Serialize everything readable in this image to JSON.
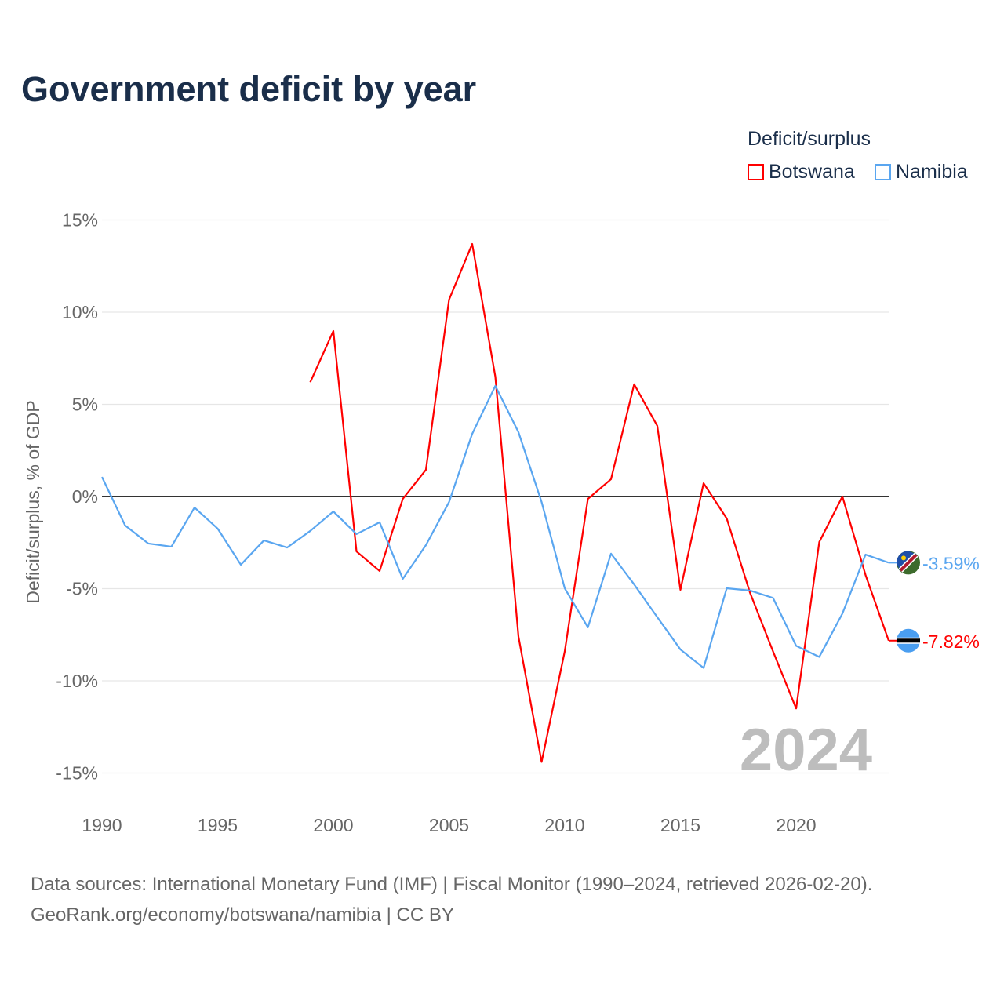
{
  "chart_data": {
    "type": "line",
    "title": "Government deficit by year",
    "ylabel": "Deficit/surplus, % of GDP",
    "xlabel": "",
    "xlim": [
      1990,
      2024
    ],
    "ylim": [
      -17,
      15
    ],
    "yticks": [
      15,
      10,
      5,
      0,
      -5,
      -10,
      -15
    ],
    "ytick_labels": [
      "15%",
      "10%",
      "5%",
      "0%",
      "-5%",
      "-10%",
      "-15%"
    ],
    "xticks": [
      1990,
      1995,
      2000,
      2005,
      2010,
      2015,
      2020
    ],
    "xtick_labels": [
      "1990",
      "1995",
      "2000",
      "2005",
      "2010",
      "2015",
      "2020"
    ],
    "legend_title": "Deficit/surplus",
    "legend_position": "top-right",
    "year_watermark": "2024",
    "series": [
      {
        "name": "Botswana",
        "color": "#ff0000",
        "end_label": "-7.82%",
        "x": [
          1999,
          2000,
          2001,
          2002,
          2003,
          2004,
          2005,
          2006,
          2007,
          2008,
          2009,
          2010,
          2011,
          2012,
          2013,
          2014,
          2015,
          2016,
          2017,
          2018,
          2019,
          2020,
          2021,
          2022,
          2023,
          2024
        ],
        "values": [
          6.2,
          8.98,
          -2.98,
          -4.04,
          -0.13,
          1.45,
          10.68,
          13.7,
          6.5,
          -7.6,
          -14.4,
          -8.4,
          -0.13,
          0.94,
          6.09,
          3.83,
          -5.06,
          0.72,
          -1.19,
          -5.2,
          -8.4,
          -11.5,
          -2.47,
          0.0,
          -4.26,
          -7.82
        ]
      },
      {
        "name": "Namibia",
        "color": "#5aa6f0",
        "end_label": "-3.59%",
        "x": [
          1990,
          1991,
          1992,
          1993,
          1994,
          1995,
          1996,
          1997,
          1998,
          1999,
          2000,
          2001,
          2002,
          2003,
          2004,
          2005,
          2006,
          2007,
          2008,
          2009,
          2010,
          2011,
          2012,
          2013,
          2014,
          2015,
          2016,
          2017,
          2018,
          2019,
          2020,
          2021,
          2022,
          2023,
          2024
        ],
        "values": [
          1.06,
          -1.57,
          -2.55,
          -2.72,
          -0.6,
          -1.74,
          -3.7,
          -2.38,
          -2.77,
          -1.87,
          -0.81,
          -2.04,
          -1.4,
          -4.47,
          -2.64,
          -0.3,
          3.4,
          6.0,
          3.49,
          -0.3,
          -4.98,
          -7.1,
          -3.1,
          -4.77,
          -6.55,
          -8.3,
          -9.3,
          -4.98,
          -5.1,
          -5.5,
          -8.1,
          -8.7,
          -6.35,
          -3.15,
          -3.59
        ]
      }
    ]
  },
  "source_line1": "Data sources: International Monetary Fund (IMF) | Fiscal Monitor (1990–2024, retrieved 2026-02-20).",
  "source_line2": "GeoRank.org/economy/botswana/namibia | CC BY"
}
